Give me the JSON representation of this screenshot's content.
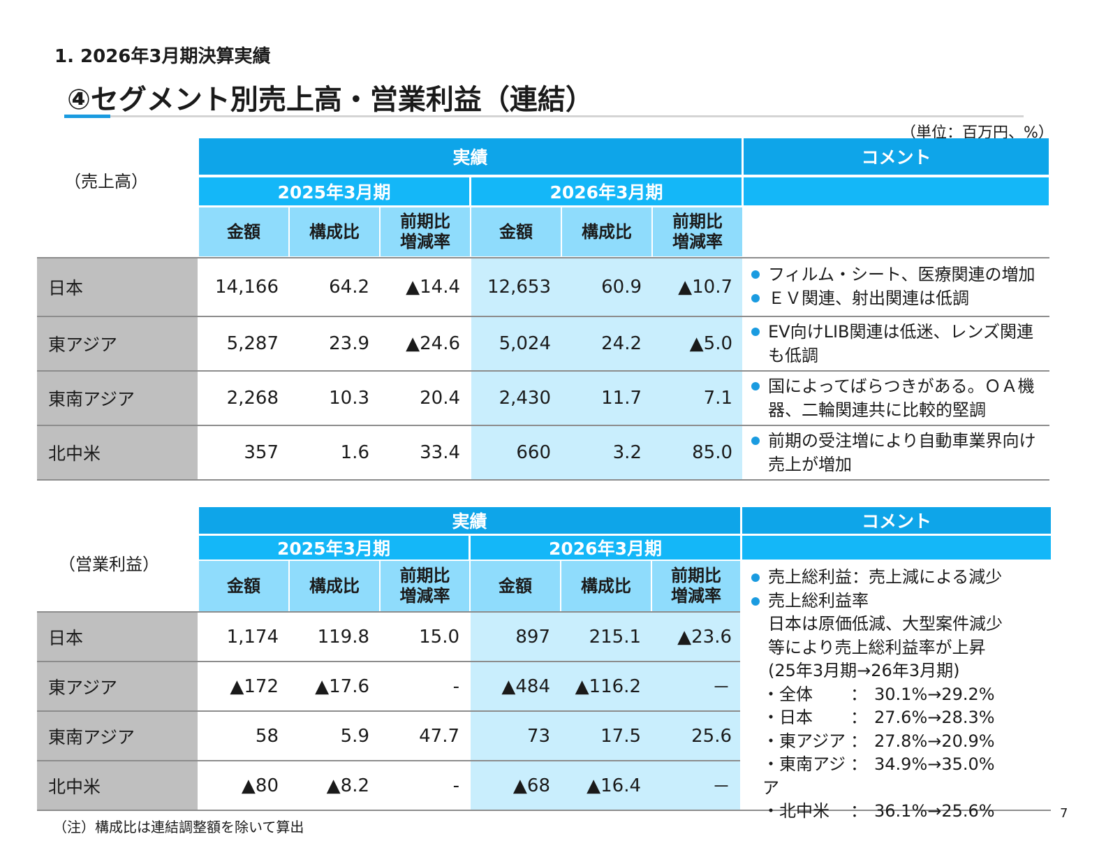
{
  "header": {
    "section": "1. 2026年3月期決算実績",
    "title": "④セグメント別売上高・営業利益（連結）",
    "unit": "（単位：百万円、%）"
  },
  "colors": {
    "accent": "#1a9be0",
    "header_main": "#0ea5e9",
    "header_sub": "#14b7f8",
    "header_col": "#8fdcfc",
    "shade": "#c9eefd",
    "row_label": "#bfbfbf"
  },
  "icons": {
    "bullet": "blue-dot-bullet"
  },
  "sales": {
    "label": "（売上高）",
    "header": {
      "results": "実績",
      "comment": "コメント",
      "period1": "2025年3月期",
      "period2": "2026年3月期",
      "col_amount": "金額",
      "col_ratio": "構成比",
      "col_change_1": "前期比",
      "col_change_2": "増減率"
    },
    "rows": [
      {
        "region": "日本",
        "v": [
          "14,166",
          "64.2",
          "▲14.4",
          "12,653",
          "60.9",
          "▲10.7"
        ]
      },
      {
        "region": "東アジア",
        "v": [
          "5,287",
          "23.9",
          "▲24.6",
          "5,024",
          "24.2",
          "▲5.0"
        ]
      },
      {
        "region": "東南アジア",
        "v": [
          "2,268",
          "10.3",
          "20.4",
          "2,430",
          "11.7",
          "7.1"
        ]
      },
      {
        "region": "北中米",
        "v": [
          "357",
          "1.6",
          "33.4",
          "660",
          "3.2",
          "85.0"
        ]
      }
    ],
    "comments": [
      [
        "フィルム・シート、医療関連の増加",
        "ＥＶ関連、射出関連は低調"
      ],
      [
        "EV向けLIB関連は低迷、レンズ関連も低調"
      ],
      [
        "国によってばらつきがある。ＯＡ機器、二輪関連共に比較的堅調"
      ],
      [
        "前期の受注増により自動車業界向け売上が増加"
      ]
    ]
  },
  "profit": {
    "label": "（営業利益）",
    "header": {
      "results": "実績",
      "comment": "コメント",
      "period1": "2025年3月期",
      "period2": "2026年3月期",
      "col_amount": "金額",
      "col_ratio": "構成比",
      "col_change_1": "前期比",
      "col_change_2": "増減率"
    },
    "rows": [
      {
        "region": "日本",
        "v": [
          "1,174",
          "119.8",
          "15.0",
          "897",
          "215.1",
          "▲23.6"
        ]
      },
      {
        "region": "東アジア",
        "v": [
          "▲172",
          "▲17.6",
          "-",
          "▲484",
          "▲116.2",
          "－"
        ]
      },
      {
        "region": "東南アジア",
        "v": [
          "58",
          "5.9",
          "47.7",
          "73",
          "17.5",
          "25.6"
        ]
      },
      {
        "region": "北中米",
        "v": [
          "▲80",
          "▲8.2",
          "-",
          "▲68",
          "▲16.4",
          "－"
        ]
      }
    ],
    "comment": {
      "bullet1": "売上総利益：売上減による減少",
      "bullet2": "売上総利益率",
      "line1": "日本は原価低減、大型案件減少",
      "line2": "等により売上総利益率が上昇",
      "line3": "(25年3月期→26年3月期)",
      "ratios": [
        {
          "k": "・全体",
          "c": "：",
          "v": "30.1%→29.2%"
        },
        {
          "k": "・日本",
          "c": "：",
          "v": "27.6%→28.3%"
        },
        {
          "k": "・東アジア",
          "c": "：",
          "v": "27.8%→20.9%"
        },
        {
          "k": "・東南アジア",
          "c": "：",
          "v": "34.9%→35.0%"
        },
        {
          "k": "・北中米",
          "c": "：",
          "v": "36.1%→25.6%"
        }
      ]
    }
  },
  "footer": {
    "note": "（注）構成比は連結調整額を除いて算出",
    "page": "7"
  }
}
